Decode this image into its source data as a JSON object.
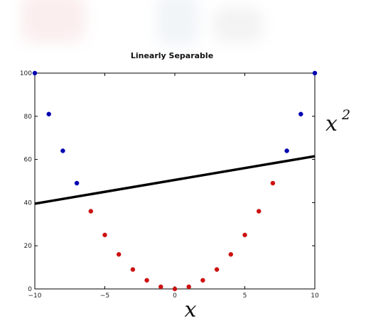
{
  "chart_data": {
    "type": "scatter",
    "title": "Linearly Separable",
    "xlabel": "x",
    "ylabel": "x",
    "ylabel_superscript": "2",
    "xlim": [
      -10,
      10
    ],
    "ylim": [
      0,
      100
    ],
    "xticks": [
      -10,
      -5,
      0,
      5,
      10
    ],
    "yticks": [
      0,
      20,
      40,
      60,
      80,
      100
    ],
    "grid": false,
    "series": [
      {
        "color": "#0000b0",
        "points": [
          {
            "x": -10,
            "y": 100
          },
          {
            "x": -9,
            "y": 81
          },
          {
            "x": -8,
            "y": 64
          },
          {
            "x": -7,
            "y": 49
          },
          {
            "x": 8,
            "y": 64
          },
          {
            "x": 9,
            "y": 81
          },
          {
            "x": 10,
            "y": 100
          }
        ]
      },
      {
        "color": "#cc1111",
        "points": [
          {
            "x": -6,
            "y": 36
          },
          {
            "x": -5,
            "y": 25
          },
          {
            "x": -4,
            "y": 16
          },
          {
            "x": -3,
            "y": 9
          },
          {
            "x": -2,
            "y": 4
          },
          {
            "x": -1,
            "y": 1
          },
          {
            "x": 0,
            "y": 0
          },
          {
            "x": 1,
            "y": 1
          },
          {
            "x": 2,
            "y": 4
          },
          {
            "x": 3,
            "y": 9
          },
          {
            "x": 4,
            "y": 16
          },
          {
            "x": 5,
            "y": 25
          },
          {
            "x": 6,
            "y": 36
          },
          {
            "x": 7,
            "y": 49
          }
        ]
      }
    ],
    "decision_line": {
      "color": "#000000",
      "points": [
        {
          "x": -10,
          "y": 39.5
        },
        {
          "x": 10,
          "y": 61.5
        }
      ]
    }
  }
}
